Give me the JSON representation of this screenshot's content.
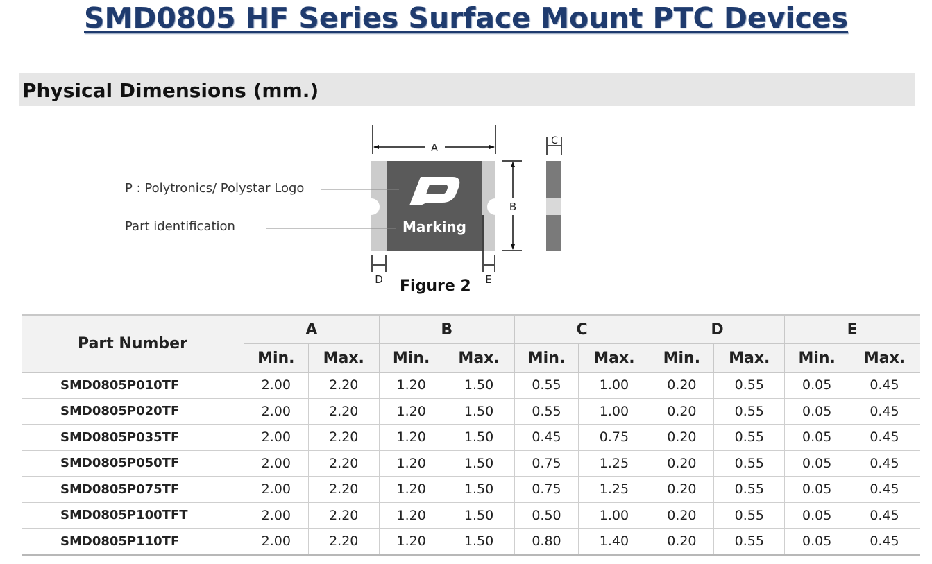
{
  "title": "SMD0805 HF Series Surface Mount PTC Devices",
  "section_title": "Physical Dimensions (mm.)",
  "figure": {
    "caption": "Figure 2",
    "logo_label": "P : Polytronics/ Polystar Logo",
    "part_id_label": "Part identification",
    "marking_text": "Marking",
    "logo_glyph": "P",
    "dims": {
      "a": "A",
      "b": "B",
      "c": "C",
      "d": "D",
      "e": "E"
    }
  },
  "table": {
    "part_number_header": "Part Number",
    "groups": [
      "A",
      "B",
      "C",
      "D",
      "E"
    ],
    "min_label": "Min.",
    "max_label": "Max.",
    "rows": [
      [
        "SMD0805P010TF",
        "2.00",
        "2.20",
        "1.20",
        "1.50",
        "0.55",
        "1.00",
        "0.20",
        "0.55",
        "0.05",
        "0.45"
      ],
      [
        "SMD0805P020TF",
        "2.00",
        "2.20",
        "1.20",
        "1.50",
        "0.55",
        "1.00",
        "0.20",
        "0.55",
        "0.05",
        "0.45"
      ],
      [
        "SMD0805P035TF",
        "2.00",
        "2.20",
        "1.20",
        "1.50",
        "0.45",
        "0.75",
        "0.20",
        "0.55",
        "0.05",
        "0.45"
      ],
      [
        "SMD0805P050TF",
        "2.00",
        "2.20",
        "1.20",
        "1.50",
        "0.75",
        "1.25",
        "0.20",
        "0.55",
        "0.05",
        "0.45"
      ],
      [
        "SMD0805P075TF",
        "2.00",
        "2.20",
        "1.20",
        "1.50",
        "0.75",
        "1.25",
        "0.20",
        "0.55",
        "0.05",
        "0.45"
      ],
      [
        "SMD0805P100TFT",
        "2.00",
        "2.20",
        "1.20",
        "1.50",
        "0.50",
        "1.00",
        "0.20",
        "0.55",
        "0.05",
        "0.45"
      ],
      [
        "SMD0805P110TF",
        "2.00",
        "2.20",
        "1.20",
        "1.50",
        "0.80",
        "1.40",
        "0.20",
        "0.55",
        "0.05",
        "0.45"
      ]
    ]
  },
  "colors": {
    "title": "#1f3b6e",
    "body_dark": "#5a5a5a",
    "terminal": "#cccccc",
    "header_bg": "#f2f2f2",
    "section_bg": "#e6e6e6"
  }
}
